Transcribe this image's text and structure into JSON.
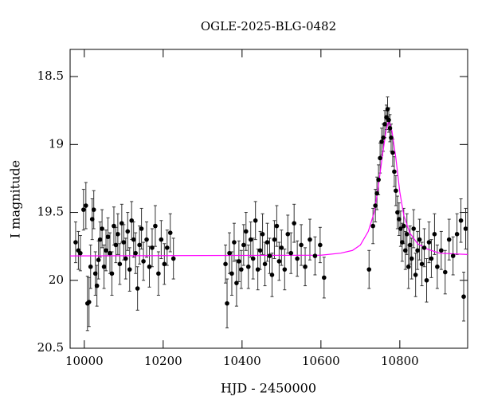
{
  "chart_data": {
    "type": "scatter",
    "title": "OGLE-2025-BLG-0482",
    "xlabel": "HJD - 2450000",
    "ylabel": "I magnitude",
    "xlim": [
      9964,
      10972
    ],
    "ylim": [
      20.5,
      18.3
    ],
    "xticks": [
      10000,
      10200,
      10400,
      10600,
      10800
    ],
    "yticks": [
      18.5,
      19,
      19.5,
      20,
      20.5
    ],
    "data": {
      "color": "#000000",
      "x": [
        9978,
        9985,
        9990,
        9998,
        10004,
        10008,
        10012,
        10016,
        10020,
        10024,
        10028,
        10032,
        10036,
        10040,
        10045,
        10050,
        10055,
        10060,
        10065,
        10070,
        10075,
        10080,
        10085,
        10090,
        10095,
        10100,
        10105,
        10110,
        10115,
        10120,
        10125,
        10130,
        10135,
        10140,
        10145,
        10150,
        10158,
        10165,
        10172,
        10180,
        10188,
        10195,
        10203,
        10210,
        10218,
        10226,
        10358,
        10362,
        10368,
        10374,
        10380,
        10386,
        10392,
        10398,
        10404,
        10410,
        10416,
        10422,
        10428,
        10434,
        10440,
        10446,
        10452,
        10458,
        10464,
        10470,
        10476,
        10482,
        10488,
        10494,
        10500,
        10508,
        10516,
        10524,
        10532,
        10540,
        10550,
        10560,
        10572,
        10585,
        10598,
        10608,
        10722,
        10732,
        10738,
        10742,
        10746,
        10750,
        10754,
        10758,
        10762,
        10766,
        10769,
        10772,
        10775,
        10778,
        10782,
        10786,
        10790,
        10794,
        10798,
        10802,
        10806,
        10810,
        10814,
        10818,
        10822,
        10826,
        10830,
        10835,
        10840,
        10845,
        10850,
        10856,
        10862,
        10868,
        10874,
        10880,
        10888,
        10895,
        10905,
        10915,
        10925,
        10935,
        10945,
        10955,
        10962,
        10967
      ],
      "values": [
        19.72,
        19.78,
        19.8,
        19.48,
        19.45,
        20.17,
        20.16,
        19.9,
        19.55,
        19.48,
        19.95,
        20.04,
        19.85,
        19.7,
        19.62,
        19.9,
        19.78,
        19.68,
        19.8,
        19.95,
        19.6,
        19.74,
        19.66,
        19.88,
        19.58,
        19.72,
        19.84,
        19.64,
        19.92,
        19.56,
        19.7,
        19.8,
        20.06,
        19.74,
        19.62,
        19.86,
        19.7,
        19.9,
        19.76,
        19.6,
        19.95,
        19.7,
        19.88,
        19.76,
        19.65,
        19.84,
        19.88,
        20.17,
        19.8,
        19.95,
        19.72,
        20.02,
        19.86,
        19.92,
        19.74,
        19.64,
        19.9,
        19.7,
        19.84,
        19.56,
        19.92,
        19.78,
        19.66,
        19.88,
        19.72,
        19.82,
        19.96,
        19.7,
        19.6,
        19.86,
        19.76,
        19.92,
        19.66,
        19.8,
        19.58,
        19.84,
        19.74,
        19.9,
        19.7,
        19.82,
        19.74,
        19.98,
        19.92,
        19.6,
        19.45,
        19.36,
        19.26,
        19.1,
        18.98,
        18.95,
        18.85,
        18.8,
        18.74,
        18.82,
        18.88,
        18.95,
        19.06,
        19.2,
        19.34,
        19.5,
        19.55,
        19.62,
        19.72,
        19.6,
        19.78,
        19.66,
        19.9,
        19.74,
        19.84,
        19.62,
        19.96,
        19.78,
        19.7,
        19.88,
        19.76,
        20.0,
        19.72,
        19.84,
        19.66,
        19.9,
        19.78,
        19.94,
        19.7,
        19.82,
        19.66,
        19.56,
        20.12,
        19.62
      ],
      "errors": [
        0.15,
        0.14,
        0.13,
        0.15,
        0.17,
        0.2,
        0.18,
        0.16,
        0.15,
        0.14,
        0.16,
        0.15,
        0.14,
        0.13,
        0.14,
        0.16,
        0.15,
        0.14,
        0.15,
        0.16,
        0.14,
        0.13,
        0.15,
        0.15,
        0.14,
        0.13,
        0.15,
        0.14,
        0.16,
        0.14,
        0.13,
        0.15,
        0.16,
        0.14,
        0.15,
        0.14,
        0.13,
        0.15,
        0.14,
        0.15,
        0.16,
        0.14,
        0.15,
        0.13,
        0.14,
        0.15,
        0.14,
        0.18,
        0.15,
        0.16,
        0.14,
        0.17,
        0.15,
        0.14,
        0.15,
        0.14,
        0.16,
        0.13,
        0.15,
        0.14,
        0.15,
        0.14,
        0.15,
        0.16,
        0.14,
        0.13,
        0.16,
        0.14,
        0.15,
        0.14,
        0.13,
        0.15,
        0.14,
        0.15,
        0.14,
        0.13,
        0.15,
        0.14,
        0.15,
        0.14,
        0.13,
        0.15,
        0.14,
        0.13,
        0.12,
        0.12,
        0.11,
        0.11,
        0.1,
        0.1,
        0.1,
        0.09,
        0.09,
        0.09,
        0.1,
        0.1,
        0.1,
        0.11,
        0.11,
        0.12,
        0.12,
        0.13,
        0.14,
        0.13,
        0.14,
        0.15,
        0.16,
        0.14,
        0.15,
        0.14,
        0.16,
        0.14,
        0.15,
        0.16,
        0.14,
        0.16,
        0.15,
        0.14,
        0.15,
        0.16,
        0.14,
        0.16,
        0.15,
        0.14,
        0.15,
        0.16,
        0.18,
        0.15
      ]
    },
    "model": {
      "color": "#ff00ff",
      "x": [
        9964,
        10600,
        10650,
        10680,
        10700,
        10720,
        10735,
        10745,
        10755,
        10765,
        10772,
        10780,
        10790,
        10800,
        10810,
        10825,
        10845,
        10870,
        10900,
        10972
      ],
      "values": [
        19.82,
        19.815,
        19.8,
        19.78,
        19.74,
        19.64,
        19.5,
        19.32,
        19.1,
        18.9,
        18.82,
        18.9,
        19.1,
        19.35,
        19.52,
        19.65,
        19.73,
        19.77,
        19.8,
        19.81
      ]
    }
  }
}
